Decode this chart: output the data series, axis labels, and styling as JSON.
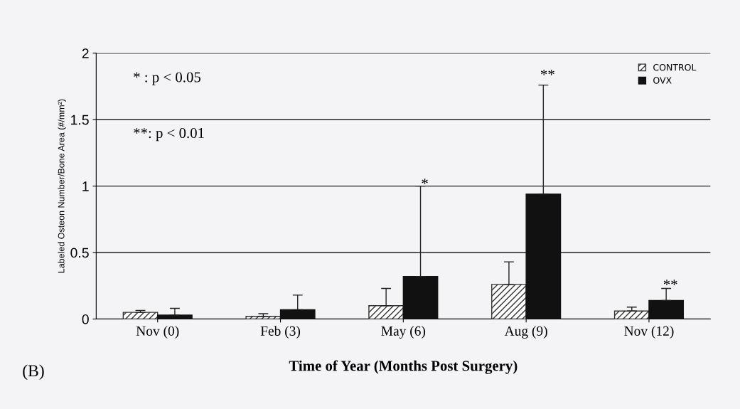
{
  "chart_data": {
    "type": "bar",
    "xlabel": "Time of Year (Months Post Surgery)",
    "ylabel": "Labeled Osteon Number/Bone Area (#/mm²)",
    "categories": [
      "Nov (0)",
      "Feb (3)",
      "May (6)",
      "Aug (9)",
      "Nov (12)"
    ],
    "series": [
      {
        "name": "CONTROL",
        "color": "#333333",
        "values": [
          0.05,
          0.02,
          0.1,
          0.26,
          0.06
        ],
        "errors": [
          [
            0.05,
            0.065
          ],
          [
            0.02,
            0.04
          ],
          [
            0.1,
            0.23
          ],
          [
            0.26,
            0.43
          ],
          [
            0.06,
            0.09
          ]
        ]
      },
      {
        "name": "OVX",
        "color": "#111111",
        "values": [
          0.03,
          0.07,
          0.32,
          0.94,
          0.14
        ],
        "errors": [
          [
            0.03,
            0.08
          ],
          [
            0.07,
            0.18
          ],
          [
            0.32,
            1.0
          ],
          [
            0.94,
            1.76
          ],
          [
            0.14,
            0.23
          ]
        ]
      }
    ],
    "ylim": [
      0,
      2
    ],
    "yticks": [
      0,
      0.5,
      1,
      1.5,
      2
    ],
    "grid": "y",
    "legend": "top right",
    "annotations": [
      "* : p < 0.05",
      "**: p < 0.01",
      "(B)",
      "*",
      "**",
      "**"
    ]
  }
}
